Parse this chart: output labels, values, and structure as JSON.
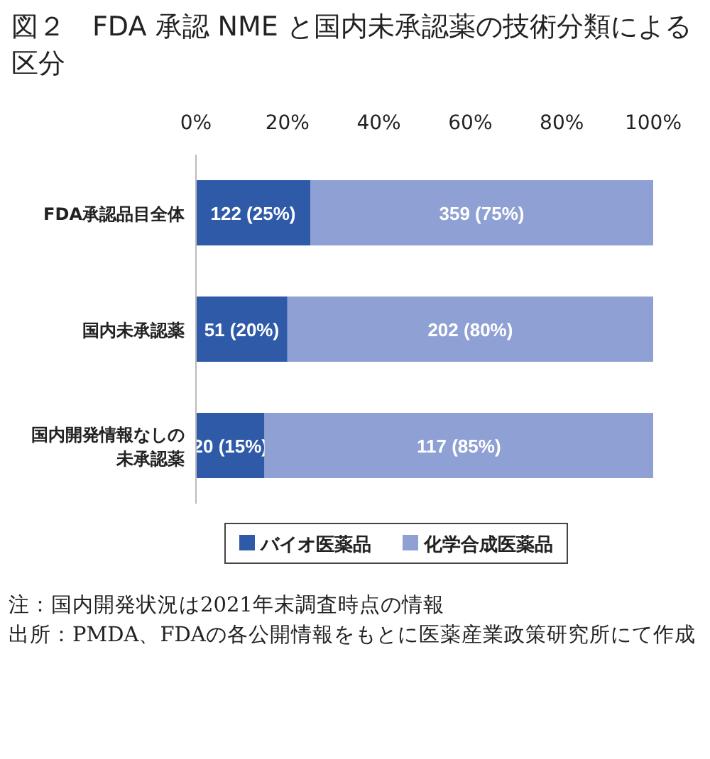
{
  "chart_data": {
    "type": "bar",
    "title": "図２　FDA 承認 NME と国内未承認薬の技術分類による区分",
    "orientation": "horizontal",
    "stacked": true,
    "categories": [
      "FDA承認品目全体",
      "国内未承認薬",
      "国内開発情報なしの未承認薬"
    ],
    "xlim": [
      0,
      100
    ],
    "xticks": [
      {
        "value": 0,
        "label": "0%"
      },
      {
        "value": 20,
        "label": "20%"
      },
      {
        "value": 40,
        "label": "40%"
      },
      {
        "value": 60,
        "label": "60%"
      },
      {
        "value": 80,
        "label": "80%"
      },
      {
        "value": 100,
        "label": "100%"
      }
    ],
    "series": [
      {
        "name": "バイオ医薬品",
        "color": "#2e5aa8",
        "values": [
          25,
          20,
          15
        ],
        "value_labels": [
          "122 (25%)",
          "51 (20%)",
          "20 (15%)"
        ]
      },
      {
        "name": "化学合成医薬品",
        "color": "#8ea0d4",
        "values": [
          75,
          80,
          85
        ],
        "value_labels": [
          "359 (75%)",
          "202 (80%)",
          "117 (85%)"
        ]
      }
    ],
    "grid": false,
    "legend": "bottom",
    "annotations": [
      "注：国内開発状況は2021年末調査時点の情報",
      "出所：PMDA、FDAの各公開情報をもとに医薬産業政策研究所にて作成"
    ]
  }
}
